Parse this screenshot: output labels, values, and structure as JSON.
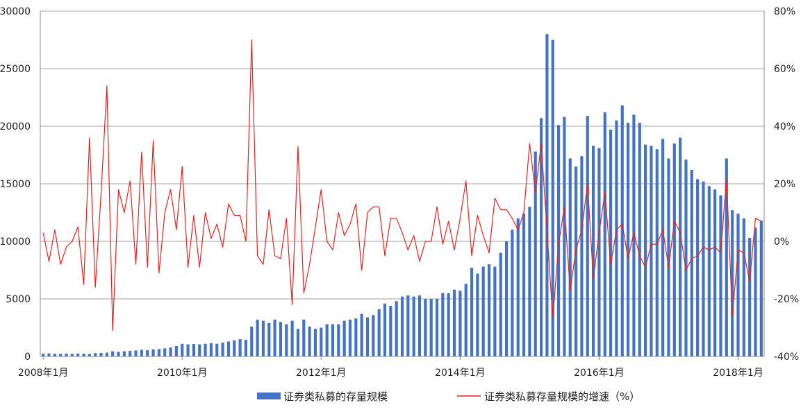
{
  "chart_data": {
    "type": "bar+line",
    "title": "",
    "xlabel": "",
    "ylabel": "",
    "y2label": "",
    "x_start": "2008-01",
    "x_end": "2018-08",
    "x_tick_labels": [
      "2008年1月",
      "2010年1月",
      "2012年1月",
      "2014年1月",
      "2016年1月",
      "2018年1月"
    ],
    "ylim_left": [
      0,
      30000
    ],
    "y_ticks_left": [
      "0",
      "5000",
      "10000",
      "15000",
      "20000",
      "25000",
      "30000"
    ],
    "ylim_right": [
      -40,
      80
    ],
    "y_ticks_right": [
      "-40%",
      "-20%",
      "0%",
      "20%",
      "40%",
      "60%",
      "80%"
    ],
    "grid": true,
    "legend_position": "bottom",
    "series": [
      {
        "name": "证券类私募的存量规模",
        "kind": "bar",
        "color": "#4472C4",
        "axis": "left",
        "values": [
          250,
          260,
          240,
          230,
          240,
          230,
          260,
          240,
          220,
          290,
          300,
          330,
          450,
          400,
          450,
          480,
          520,
          570,
          540,
          620,
          640,
          700,
          780,
          900,
          1100,
          1050,
          1080,
          1050,
          1100,
          1150,
          1100,
          1200,
          1300,
          1400,
          1500,
          1450,
          2600,
          3200,
          3100,
          2900,
          3200,
          3000,
          2800,
          3100,
          2400,
          3200,
          2600,
          2400,
          2500,
          2800,
          2800,
          2800,
          3100,
          3200,
          3300,
          3700,
          3400,
          3600,
          4100,
          4600,
          4400,
          4800,
          5200,
          5300,
          5200,
          5300,
          5000,
          5000,
          5000,
          5500,
          5500,
          5800,
          5700,
          6300,
          7700,
          7200,
          7800,
          8000,
          7800,
          9000,
          10000,
          11000,
          12000,
          12400,
          13000,
          17800,
          20700,
          28000,
          27500,
          20100,
          20800,
          17200,
          16500,
          17400,
          20900,
          18300,
          18100,
          21200,
          19700,
          20500,
          21800,
          20300,
          21000,
          20300,
          18400,
          18300,
          18000,
          18900,
          17200,
          18500,
          19000,
          17100,
          16200,
          15400,
          15200,
          14800,
          14500,
          14000,
          17200,
          12700,
          12400,
          12000,
          10300,
          11200,
          11800
        ]
      },
      {
        "name": "证券类私募存量规模的增速（%）",
        "kind": "line",
        "color": "#E8201F",
        "axis": "right",
        "values": [
          3,
          -7,
          4,
          -8,
          -2,
          0,
          5,
          -15,
          36,
          -16,
          17,
          54,
          -31,
          18,
          10,
          21,
          -8,
          31,
          -9,
          35,
          -11,
          10,
          18,
          4,
          26,
          -9,
          9,
          -9,
          10,
          1,
          6,
          -2,
          13,
          9,
          9,
          0,
          70,
          -5,
          -8,
          11,
          -5,
          -6,
          8,
          -22,
          33,
          -18,
          -8,
          5,
          18,
          0,
          -3,
          10,
          2,
          6,
          13,
          -10,
          10,
          12,
          12,
          -5,
          8,
          8,
          3,
          -3,
          2,
          -7,
          0,
          0,
          12,
          -1,
          7,
          -3,
          8,
          21,
          -5,
          9,
          2,
          -4,
          15,
          11,
          11,
          8,
          4,
          10,
          34,
          17,
          34,
          4,
          -27,
          -1,
          12,
          -17,
          -3,
          4,
          20,
          -13,
          3,
          17,
          -8,
          4,
          6,
          -6,
          3,
          -5,
          -9,
          -1,
          -1,
          4,
          -9,
          7,
          3,
          -10,
          -6,
          -5,
          -2,
          -3,
          -2,
          -4,
          22,
          -26,
          -3,
          -4,
          -14,
          8,
          7
        ]
      }
    ]
  }
}
